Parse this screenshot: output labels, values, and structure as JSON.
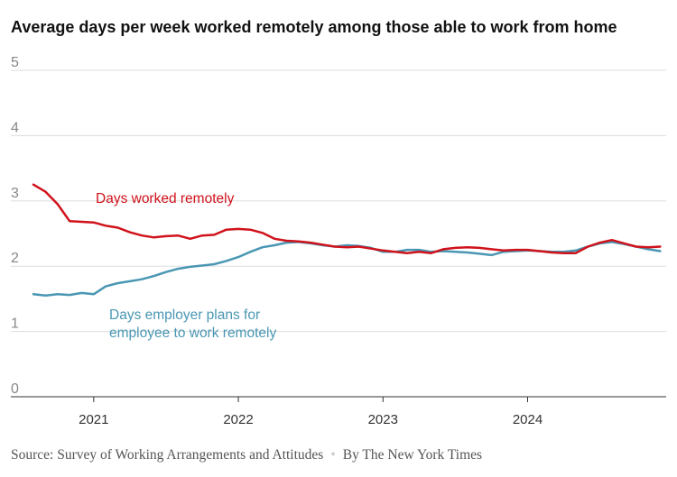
{
  "title": "Average days per week worked remotely among those able to work from home",
  "source": "Source: Survey of Working Arrangements and Attitudes",
  "credit": "By The New York Times",
  "chart_data": {
    "type": "line",
    "title": "Average days per week worked remotely among those able to work from home",
    "ylim": [
      0,
      5
    ],
    "yticks": [
      0,
      1,
      2,
      3,
      4,
      5
    ],
    "xlim": [
      2020.583,
      2024.958
    ],
    "xticks": [
      {
        "value": 2021,
        "label": "2021"
      },
      {
        "value": 2022,
        "label": "2022"
      },
      {
        "value": 2023,
        "label": "2023"
      },
      {
        "value": 2024,
        "label": "2024"
      }
    ],
    "grid": true,
    "series": [
      {
        "name": "Days worked remotely",
        "color": "#d0121b",
        "x": [
          2020.583,
          2020.667,
          2020.75,
          2020.833,
          2020.917,
          2021.0,
          2021.083,
          2021.167,
          2021.25,
          2021.333,
          2021.417,
          2021.5,
          2021.583,
          2021.667,
          2021.75,
          2021.833,
          2021.917,
          2022.0,
          2022.083,
          2022.167,
          2022.25,
          2022.333,
          2022.417,
          2022.5,
          2022.583,
          2022.667,
          2022.75,
          2022.833,
          2022.917,
          2023.0,
          2023.083,
          2023.167,
          2023.25,
          2023.333,
          2023.417,
          2023.5,
          2023.583,
          2023.667,
          2023.75,
          2023.833,
          2023.917,
          2024.0,
          2024.083,
          2024.167,
          2024.25,
          2024.333,
          2024.417,
          2024.5,
          2024.583,
          2024.667,
          2024.75,
          2024.833,
          2024.917
        ],
        "values": [
          3.25,
          3.14,
          2.95,
          2.69,
          2.68,
          2.67,
          2.62,
          2.59,
          2.52,
          2.47,
          2.44,
          2.46,
          2.47,
          2.42,
          2.47,
          2.48,
          2.56,
          2.57,
          2.56,
          2.51,
          2.42,
          2.39,
          2.38,
          2.36,
          2.33,
          2.3,
          2.29,
          2.3,
          2.27,
          2.24,
          2.22,
          2.2,
          2.22,
          2.2,
          2.26,
          2.28,
          2.29,
          2.28,
          2.26,
          2.24,
          2.25,
          2.25,
          2.23,
          2.21,
          2.2,
          2.2,
          2.3,
          2.36,
          2.4,
          2.35,
          2.3,
          2.29,
          2.3
        ]
      },
      {
        "name": "Days employer plans for employee to work remotely",
        "color": "#4a97b3",
        "x": [
          2020.583,
          2020.667,
          2020.75,
          2020.833,
          2020.917,
          2021.0,
          2021.083,
          2021.167,
          2021.25,
          2021.333,
          2021.417,
          2021.5,
          2021.583,
          2021.667,
          2021.75,
          2021.833,
          2021.917,
          2022.0,
          2022.083,
          2022.167,
          2022.25,
          2022.333,
          2022.417,
          2022.5,
          2022.583,
          2022.667,
          2022.75,
          2022.833,
          2022.917,
          2023.0,
          2023.083,
          2023.167,
          2023.25,
          2023.333,
          2023.417,
          2023.5,
          2023.583,
          2023.667,
          2023.75,
          2023.833,
          2023.917,
          2024.0,
          2024.083,
          2024.167,
          2024.25,
          2024.333,
          2024.417,
          2024.5,
          2024.583,
          2024.667,
          2024.75,
          2024.833,
          2024.917
        ],
        "values": [
          1.57,
          1.55,
          1.57,
          1.56,
          1.59,
          1.57,
          1.69,
          1.74,
          1.77,
          1.8,
          1.85,
          1.91,
          1.96,
          1.99,
          2.01,
          2.03,
          2.08,
          2.14,
          2.22,
          2.29,
          2.32,
          2.36,
          2.37,
          2.35,
          2.32,
          2.3,
          2.32,
          2.31,
          2.28,
          2.22,
          2.22,
          2.25,
          2.25,
          2.22,
          2.23,
          2.22,
          2.21,
          2.19,
          2.17,
          2.22,
          2.23,
          2.24,
          2.23,
          2.22,
          2.22,
          2.24,
          2.3,
          2.35,
          2.37,
          2.34,
          2.3,
          2.26,
          2.23
        ]
      }
    ]
  }
}
